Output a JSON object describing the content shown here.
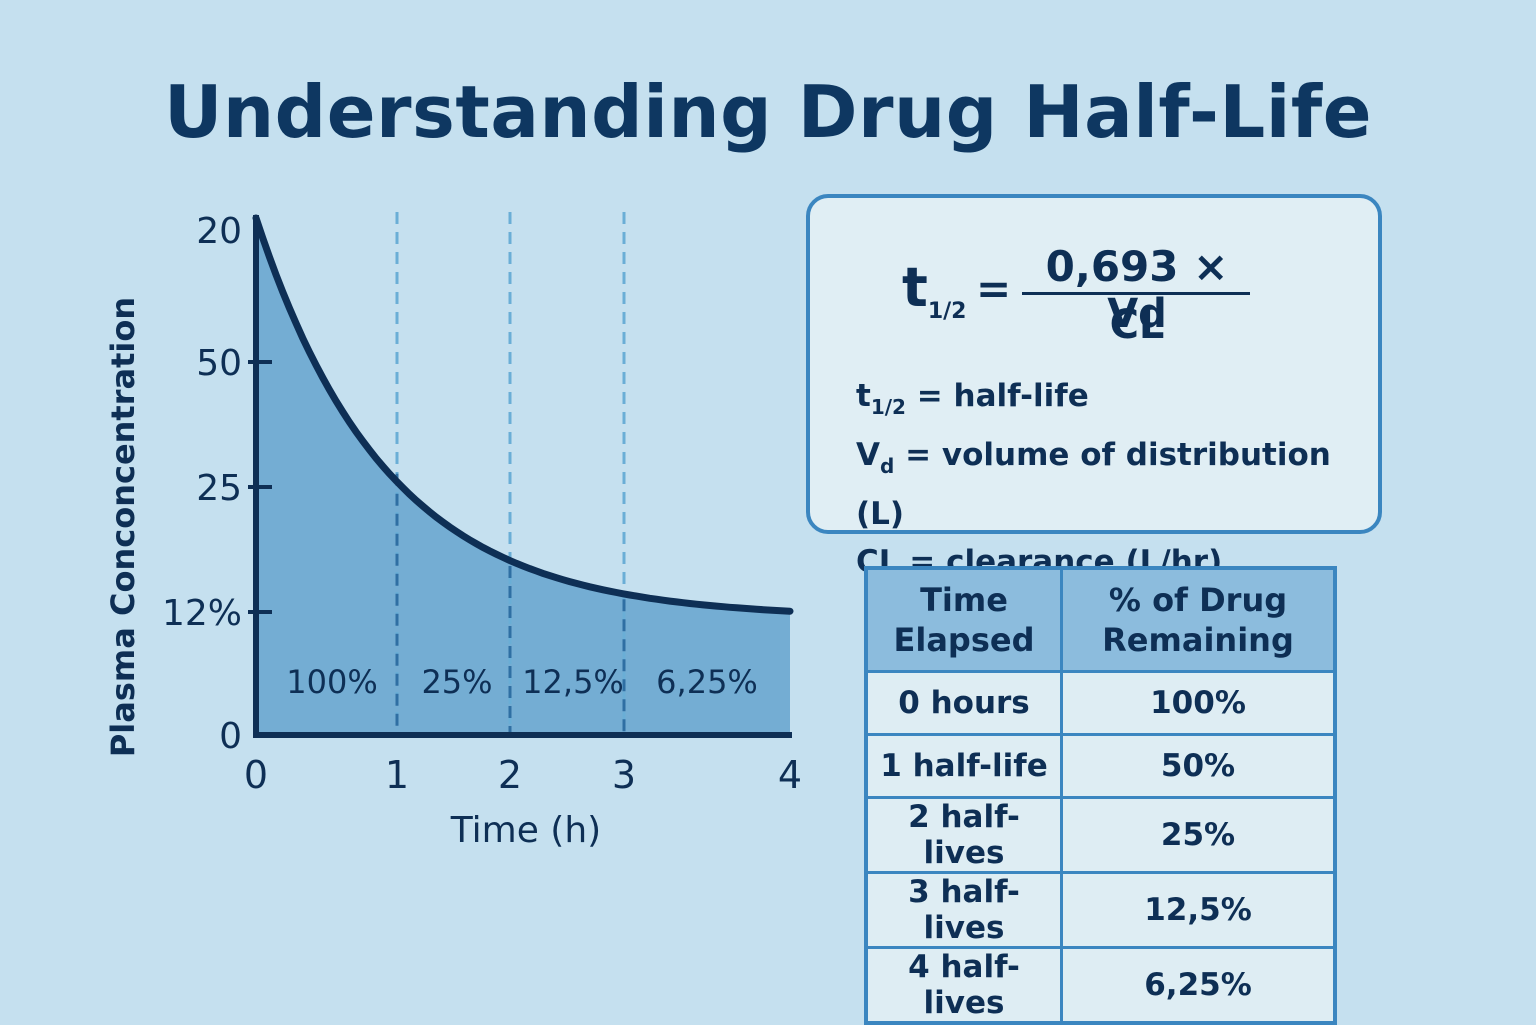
{
  "title": "Understanding Drug Half-Life",
  "chart_data": {
    "type": "area",
    "xlabel": "Time (h)",
    "ylabel": "Plasma Conconcentration",
    "x_ticks": [
      "0",
      "1",
      "2",
      "3",
      "4"
    ],
    "y_ticks": [
      "0",
      "12%",
      "25",
      "50",
      "20"
    ],
    "segment_labels": [
      "100%",
      "25%",
      "12,5%",
      "6,25%"
    ],
    "half_life_markers": [
      1,
      2,
      3
    ],
    "colors": {
      "fill": "#74add3",
      "line": "#0e2f55",
      "marker": "#6aaed6"
    }
  },
  "formula": {
    "lhs": "t",
    "lhs_sub": "1/2",
    "equals": "=",
    "numerator": "0,693 ×",
    "numerator_var": "Vd",
    "denominator": "CL"
  },
  "definitions": [
    {
      "symbol": "t",
      "sub": "1/2",
      "text": " = half-life"
    },
    {
      "symbol": "V",
      "sub": "d",
      "text": " = volume of distribution (L)"
    },
    {
      "symbol": "CL",
      "sub": "",
      "text": " = clearance (L/hr)"
    }
  ],
  "table": {
    "headers": [
      "Time\nElapsed",
      "% of Drug\nRemaining"
    ],
    "rows": [
      [
        "0 hours",
        "100%"
      ],
      [
        "1 half-life",
        "50%"
      ],
      [
        "2 half-lives",
        "25%"
      ],
      [
        "3 half-lives",
        "12,5%"
      ],
      [
        "4 half-lives",
        "6,25%"
      ]
    ]
  }
}
